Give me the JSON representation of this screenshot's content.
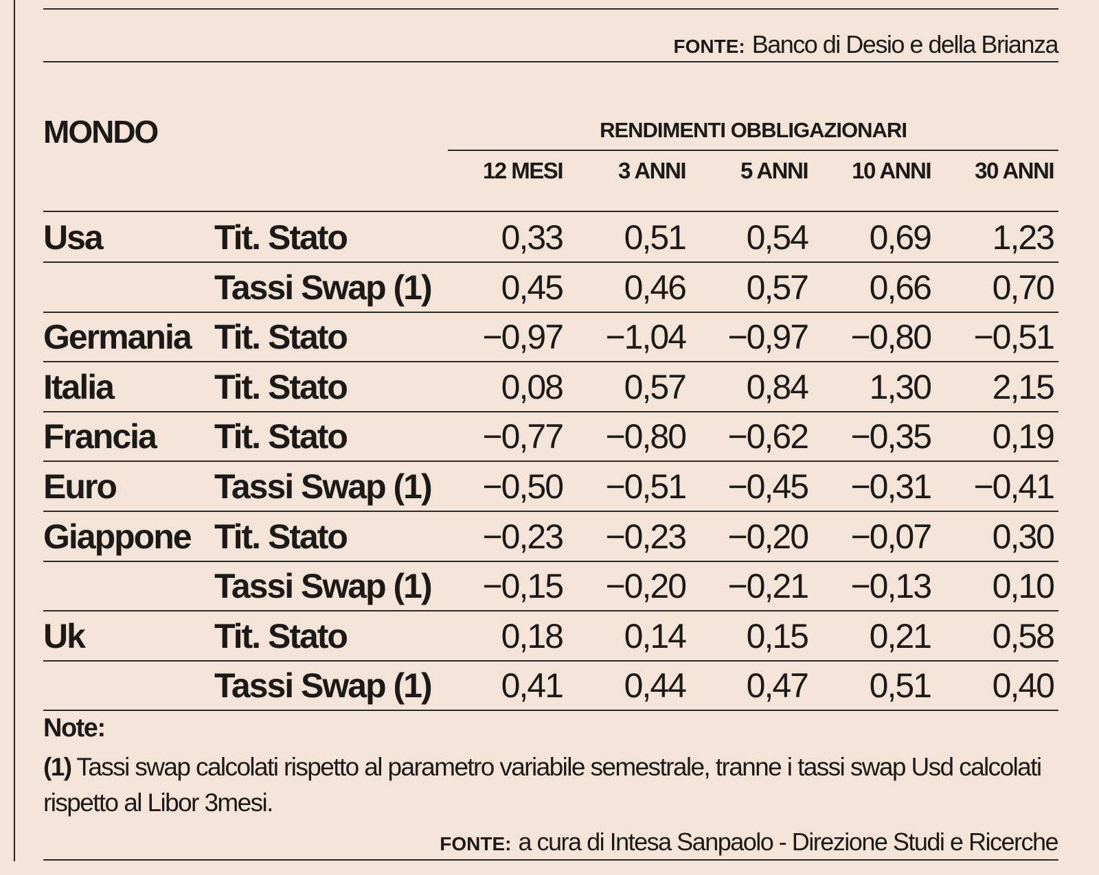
{
  "top_source": {
    "label": "FONTE:",
    "text": "Banco di Desio e della Brianza"
  },
  "table": {
    "title": "MONDO",
    "group_header": "RENDIMENTI OBBLIGAZIONARI",
    "columns": [
      "12 MESI",
      "3 ANNI",
      "5 ANNI",
      "10 ANNI",
      "30 ANNI"
    ],
    "rows": [
      {
        "country": "Usa",
        "type": "Tit. Stato",
        "values": [
          "0,33",
          "0,51",
          "0,54",
          "0,69",
          "1,23"
        ]
      },
      {
        "country": "",
        "type": "Tassi Swap (1)",
        "values": [
          "0,45",
          "0,46",
          "0,57",
          "0,66",
          "0,70"
        ]
      },
      {
        "country": "Germania",
        "type": "Tit. Stato",
        "values": [
          "−0,97",
          "−1,04",
          "−0,97",
          "−0,80",
          "−0,51"
        ]
      },
      {
        "country": "Italia",
        "type": "Tit. Stato",
        "values": [
          "0,08",
          "0,57",
          "0,84",
          "1,30",
          "2,15"
        ]
      },
      {
        "country": "Francia",
        "type": "Tit. Stato",
        "values": [
          "−0,77",
          "−0,80",
          "−0,62",
          "−0,35",
          "0,19"
        ]
      },
      {
        "country": "Euro",
        "type": "Tassi Swap (1)",
        "values": [
          "−0,50",
          "−0,51",
          "−0,45",
          "−0,31",
          "−0,41"
        ]
      },
      {
        "country": "Giappone",
        "type": "Tit. Stato",
        "values": [
          "−0,23",
          "−0,23",
          "−0,20",
          "−0,07",
          "0,30"
        ]
      },
      {
        "country": "",
        "type": "Tassi Swap (1)",
        "values": [
          "−0,15",
          "−0,20",
          "−0,21",
          "−0,13",
          "0,10"
        ]
      },
      {
        "country": "Uk",
        "type": "Tit. Stato",
        "values": [
          "0,18",
          "0,14",
          "0,15",
          "0,21",
          "0,58"
        ]
      },
      {
        "country": "",
        "type": "Tassi Swap (1)",
        "values": [
          "0,41",
          "0,44",
          "0,47",
          "0,51",
          "0,40"
        ]
      }
    ]
  },
  "notes": {
    "heading": "Note:",
    "marker": "(1)",
    "text": "Tassi swap calcolati rispetto al parametro variabile semestrale, tranne i tassi swap Usd calcolati rispetto al Libor 3mesi."
  },
  "bottom_source": {
    "label": "FONTE:",
    "text": "a cura di Intesa Sanpaolo - Direzione Studi e Ricerche"
  },
  "colors": {
    "background": "#f4e4d7",
    "text": "#1c1a19",
    "rule": "#2a2624"
  }
}
